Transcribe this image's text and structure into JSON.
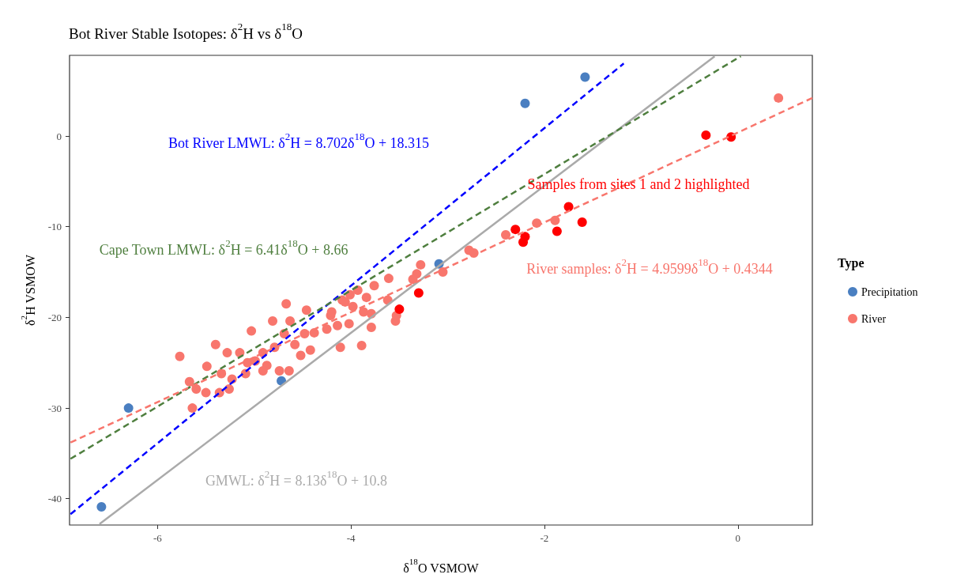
{
  "chart_data": {
    "type": "scatter",
    "title": "Bot River Stable Isotopes: δ$^{2}$H vs δ$^{18}$O",
    "xlabel": "δ$^{18}$O VSMOW",
    "ylabel": "δ$^{2}$H VSMOW",
    "legend_title": "Type",
    "legend": "right",
    "grid": false,
    "xlim": [
      -6.91,
      0.77
    ],
    "ylim": [
      -42.9,
      8.9
    ],
    "xticks": [
      -6,
      -4,
      -2,
      0
    ],
    "yticks": [
      -40,
      -30,
      -20,
      -10,
      0
    ],
    "series": [
      {
        "name": "Precipitation",
        "marker": "circle",
        "color": "#4a7fc1",
        "x": [
          -6.58,
          -6.3,
          -4.72,
          -3.09,
          -2.2,
          -1.58
        ],
        "values": [
          -40.9,
          -30.0,
          -27.0,
          -14.1,
          3.6,
          6.5
        ]
      },
      {
        "name": "River",
        "marker": "circle",
        "color": "#f8766d",
        "x": [
          0.42,
          -2.08,
          -1.89,
          -2.4,
          -2.73,
          -5.77,
          -5.64,
          -5.67,
          -5.6,
          -5.5,
          -5.49,
          -5.4,
          -5.28,
          -5.34,
          -5.36,
          -5.26,
          -5.23,
          -5.15,
          -5.07,
          -5.09,
          -5.03,
          -4.99,
          -4.91,
          -4.87,
          -4.91,
          -4.81,
          -4.79,
          -4.74,
          -4.67,
          -4.63,
          -4.64,
          -4.69,
          -4.58,
          -4.52,
          -4.48,
          -4.46,
          -4.42,
          -4.38,
          -4.25,
          -4.21,
          -4.14,
          -4.11,
          -4.09,
          -4.01,
          -4.02,
          -3.93,
          -3.89,
          -3.84,
          -3.79,
          -3.76,
          -3.62,
          -3.61,
          -3.28,
          -3.32,
          -3.36,
          -3.05,
          -2.78,
          -3.79,
          -3.54,
          -3.53,
          -4.06,
          -3.98,
          -3.87,
          -4.2
        ],
        "values": [
          4.2,
          -9.6,
          -9.3,
          -10.9,
          -12.9,
          -24.3,
          -30.0,
          -27.1,
          -27.9,
          -28.3,
          -25.4,
          -23.0,
          -23.9,
          -26.2,
          -28.3,
          -27.9,
          -26.8,
          -23.9,
          -25.0,
          -26.2,
          -21.5,
          -24.8,
          -23.9,
          -25.3,
          -25.9,
          -20.4,
          -23.3,
          -25.9,
          -18.5,
          -20.4,
          -25.9,
          -21.8,
          -23.0,
          -24.2,
          -21.8,
          -19.2,
          -23.6,
          -21.7,
          -21.3,
          -19.8,
          -20.9,
          -23.3,
          -18.1,
          -17.5,
          -20.7,
          -17.0,
          -23.1,
          -17.8,
          -21.1,
          -16.5,
          -18.1,
          -15.7,
          -14.2,
          -15.2,
          -15.8,
          -15.0,
          -12.6,
          -19.6,
          -20.4,
          -19.8,
          -18.3,
          -18.8,
          -19.4,
          -19.4
        ]
      },
      {
        "marker": "circle",
        "color": "#ff0000",
        "x": [
          -0.33,
          -0.07,
          -1.75,
          -1.61,
          -1.87,
          -2.3,
          -2.2,
          -2.22,
          -3.3,
          -3.5
        ],
        "values": [
          0.1,
          -0.1,
          -7.8,
          -9.5,
          -10.5,
          -10.3,
          -11.1,
          -11.7,
          -17.3,
          -19.1
        ]
      },
      {
        "type": "line",
        "marker": "none",
        "color": "#aaaaaa",
        "line_style": "solid",
        "x": [
          -6.6,
          -0.24
        ],
        "values": [
          -42.8,
          8.8
        ]
      },
      {
        "type": "line",
        "marker": "none",
        "color": "#0000ff",
        "line_style": "dashed",
        "x": [
          -6.9,
          -1.18
        ],
        "values": [
          -41.7,
          8.0
        ]
      },
      {
        "type": "line",
        "marker": "none",
        "color": "#4f7f3f",
        "line_style": "dashed",
        "x": [
          -6.9,
          0.03
        ],
        "values": [
          -35.6,
          8.8
        ]
      },
      {
        "type": "line",
        "marker": "none",
        "color": "#f8766d",
        "line_style": "dashed",
        "x": [
          -6.9,
          0.77
        ],
        "values": [
          -33.8,
          4.2
        ]
      }
    ],
    "annotations": [
      "Samples from sites 1 and 2 highlighted",
      "GMWL: δ$^{2}$H = 8.13δ$^{18}$O + 10.8",
      "Bot River LMWL: δ$^{2}$H = 8.702δ$^{18}$O + 18.315",
      "Cape Town LMWL: δ$^{2}$H = 6.41δ$^{18}$O + 8.66",
      "River samples: δ$^{2}$H = 4.9599δ$^{18}$O + 0.4344"
    ]
  }
}
